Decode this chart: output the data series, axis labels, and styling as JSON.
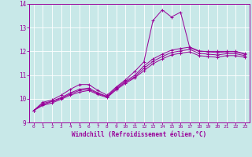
{
  "background_color": "#c8e8e8",
  "line_color": "#990099",
  "xlabel": "Windchill (Refroidissement éolien,°C)",
  "xlim": [
    -0.5,
    23.5
  ],
  "ylim": [
    9,
    14
  ],
  "yticks": [
    9,
    10,
    11,
    12,
    13,
    14
  ],
  "xticks": [
    0,
    1,
    2,
    3,
    4,
    5,
    6,
    7,
    8,
    9,
    10,
    11,
    12,
    13,
    14,
    15,
    16,
    17,
    18,
    19,
    20,
    21,
    22,
    23
  ],
  "series": [
    [
      9.5,
      9.85,
      9.95,
      10.15,
      10.4,
      10.6,
      10.6,
      10.35,
      10.15,
      10.5,
      10.8,
      11.15,
      11.55,
      13.3,
      13.75,
      13.45,
      13.65,
      12.15,
      12.0,
      12.0,
      12.0,
      12.0,
      12.0,
      11.9
    ],
    [
      9.5,
      9.8,
      9.9,
      10.05,
      10.25,
      10.4,
      10.45,
      10.25,
      10.1,
      10.45,
      10.75,
      10.98,
      11.38,
      11.68,
      11.88,
      12.05,
      12.12,
      12.18,
      12.02,
      11.98,
      11.95,
      11.98,
      11.98,
      11.88
    ],
    [
      9.5,
      9.75,
      9.88,
      10.02,
      10.2,
      10.35,
      10.4,
      10.22,
      10.08,
      10.42,
      10.7,
      10.92,
      11.28,
      11.58,
      11.78,
      11.95,
      12.02,
      12.08,
      11.92,
      11.88,
      11.85,
      11.9,
      11.9,
      11.82
    ],
    [
      9.5,
      9.72,
      9.82,
      9.98,
      10.15,
      10.28,
      10.35,
      10.18,
      10.05,
      10.38,
      10.65,
      10.88,
      11.18,
      11.48,
      11.68,
      11.85,
      11.92,
      11.98,
      11.82,
      11.78,
      11.75,
      11.82,
      11.82,
      11.75
    ]
  ]
}
